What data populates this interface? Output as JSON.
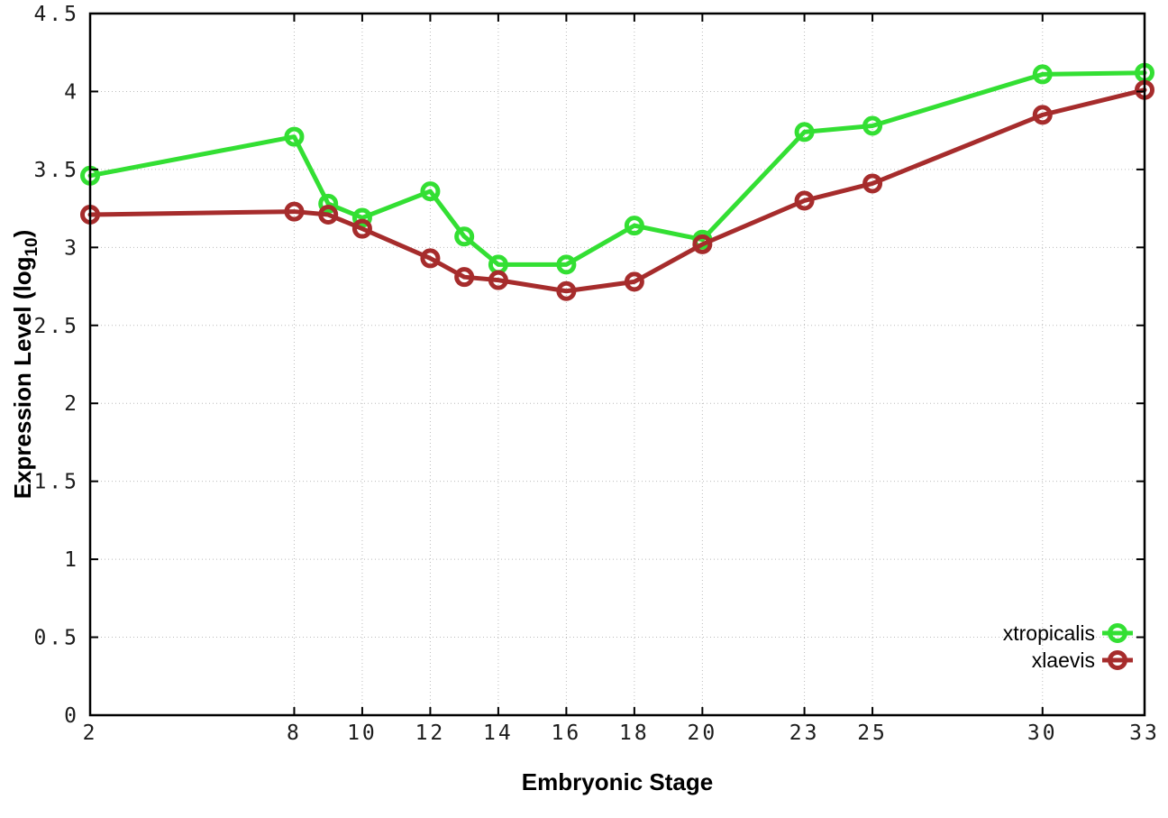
{
  "figure": {
    "background": "#ffffff"
  },
  "chart_data": {
    "type": "line",
    "title": "",
    "xlabel": "Embryonic Stage",
    "ylabel": "Expression Level (log10)",
    "ylabel_parts": {
      "main": "Expression Level (log",
      "sub": "10",
      "close": ")"
    },
    "x": [
      2,
      8,
      9,
      10,
      12,
      13,
      14,
      16,
      18,
      20,
      23,
      25,
      30,
      33
    ],
    "xlim": [
      2,
      33
    ],
    "ylim": [
      0,
      4.5
    ],
    "x_ticks": [
      2,
      8,
      10,
      12,
      14,
      16,
      18,
      20,
      23,
      25,
      30,
      33
    ],
    "y_ticks": [
      0,
      0.5,
      1,
      1.5,
      2,
      2.5,
      3,
      3.5,
      4,
      4.5
    ],
    "grid": true,
    "legend_position": "bottom-right",
    "series": [
      {
        "name": "xtropicalis",
        "color": "#33df33",
        "marker": "open-circle",
        "values": [
          3.46,
          3.71,
          3.28,
          3.19,
          3.36,
          3.07,
          2.89,
          2.89,
          3.14,
          3.05,
          3.74,
          3.78,
          4.11,
          4.12
        ]
      },
      {
        "name": "xlaevis",
        "color": "#a62c2c",
        "marker": "open-circle",
        "values": [
          3.21,
          3.23,
          3.21,
          3.12,
          2.93,
          2.81,
          2.79,
          2.72,
          2.78,
          3.02,
          3.3,
          3.41,
          3.85,
          4.01
        ]
      }
    ],
    "style": {
      "grid_color": "#bbbbbb",
      "axis_color": "#000000",
      "line_width": 5,
      "marker_radius": 8.5,
      "marker_stroke": 5
    }
  }
}
